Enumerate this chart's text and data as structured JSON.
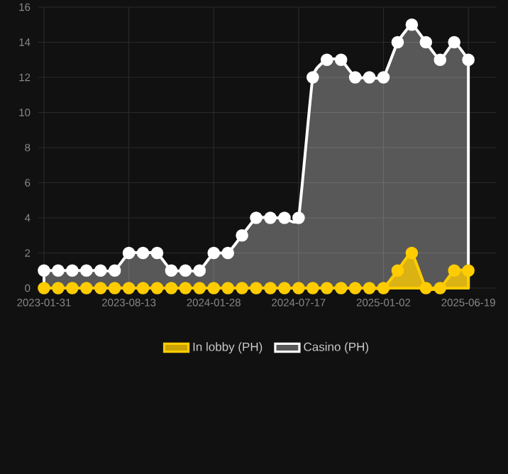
{
  "chart_data": {
    "type": "area",
    "categories": [
      "2023-01-31",
      null,
      null,
      null,
      null,
      null,
      "2023-08-13",
      null,
      null,
      null,
      null,
      null,
      "2024-01-28",
      null,
      null,
      null,
      null,
      null,
      "2024-07-17",
      null,
      null,
      null,
      null,
      null,
      "2025-01-02",
      null,
      null,
      null,
      null,
      null,
      "2025-06-19"
    ],
    "series": [
      {
        "name": "Casino (PH)",
        "color": "#ffffff",
        "values": [
          1,
          1,
          1,
          1,
          1,
          1,
          2,
          2,
          2,
          1,
          1,
          1,
          2,
          2,
          3,
          4,
          4,
          4,
          4,
          12,
          13,
          13,
          12,
          12,
          12,
          14,
          15,
          14,
          13,
          14,
          13
        ]
      },
      {
        "name": "In lobby (PH)",
        "color": "#ffcc00",
        "values": [
          0,
          0,
          0,
          0,
          0,
          0,
          0,
          0,
          0,
          0,
          0,
          0,
          0,
          0,
          0,
          0,
          0,
          0,
          0,
          0,
          0,
          0,
          0,
          0,
          0,
          1,
          2,
          0,
          0,
          1,
          1
        ]
      }
    ],
    "ylim": [
      0,
      16
    ],
    "yticks": [
      0,
      2,
      4,
      6,
      8,
      10,
      12,
      14,
      16
    ],
    "grid": true,
    "legend": "bottom",
    "marker": "circle",
    "line_style": "solid"
  }
}
